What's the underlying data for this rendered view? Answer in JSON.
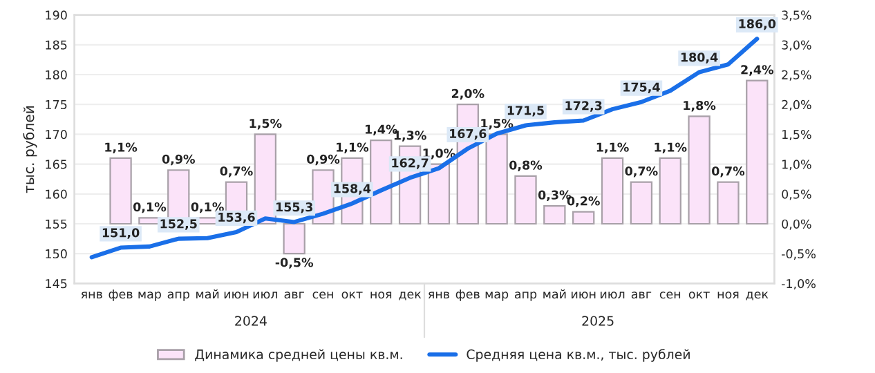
{
  "chart_data": {
    "type": "bar",
    "categories": [
      "янв",
      "фев",
      "мар",
      "апр",
      "май",
      "июн",
      "июл",
      "авг",
      "сен",
      "окт",
      "ноя",
      "дек",
      "янв",
      "фев",
      "мар",
      "апр",
      "май",
      "июн",
      "июл",
      "авг",
      "сен",
      "окт",
      "ноя",
      "дек"
    ],
    "series": [
      {
        "name": "Динамика средней цены кв.м.",
        "axis": "y2",
        "color": "#fbe3f9",
        "values": [
          null,
          1.1,
          0.1,
          0.9,
          0.1,
          0.7,
          1.5,
          -0.5,
          0.9,
          1.1,
          1.4,
          1.3,
          1.0,
          2.0,
          1.5,
          0.8,
          0.3,
          0.2,
          1.1,
          0.7,
          1.1,
          1.8,
          0.7,
          2.4
        ],
        "value_labels": [
          null,
          "1,1%",
          "0,1%",
          "0,9%",
          "0,1%",
          "0,7%",
          "1,5%",
          "-0,5%",
          "0,9%",
          "1,1%",
          "1,4%",
          "1,3%",
          "1,0%",
          "2,0%",
          "1,5%",
          "0,8%",
          "0,3%",
          "0,2%",
          "1,1%",
          "0,7%",
          "1,1%",
          "1,8%",
          "0,7%",
          "2,4%"
        ]
      },
      {
        "name": "Средняя цена кв.м., тыс. рублей",
        "type": "line",
        "color": "#1a6fe8",
        "values": [
          149.4,
          151.0,
          151.2,
          152.5,
          152.6,
          153.6,
          155.9,
          155.3,
          156.7,
          158.4,
          160.6,
          162.7,
          164.3,
          167.6,
          170.1,
          171.5,
          172.0,
          172.3,
          174.2,
          175.4,
          177.3,
          180.4,
          181.7,
          186.0
        ],
        "value_labels": [
          null,
          "151,0",
          null,
          "152,5",
          null,
          "153,6",
          null,
          "155,3",
          null,
          "158,4",
          null,
          "162,7",
          null,
          "167,6",
          null,
          "171,5",
          null,
          "172,3",
          null,
          "175,4",
          null,
          "180,4",
          null,
          "186,0"
        ]
      }
    ],
    "ylabel": "тыс. рублей",
    "ylim": [
      145,
      190
    ],
    "yticks": [
      145,
      150,
      155,
      160,
      165,
      170,
      175,
      180,
      185,
      190
    ],
    "y2lim": [
      -1.0,
      3.5
    ],
    "y2ticks": [
      {
        "value": -1.0,
        "label": "-1,0%"
      },
      {
        "value": -0.5,
        "label": "-0,5%"
      },
      {
        "value": 0.0,
        "label": "0,0%"
      },
      {
        "value": 0.5,
        "label": "0,5%"
      },
      {
        "value": 1.0,
        "label": "1,0%"
      },
      {
        "value": 1.5,
        "label": "1,5%"
      },
      {
        "value": 2.0,
        "label": "2,0%"
      },
      {
        "value": 2.5,
        "label": "2,5%"
      },
      {
        "value": 3.0,
        "label": "3,0%"
      },
      {
        "value": 3.5,
        "label": "3,5%"
      }
    ],
    "annotations": [
      "2024",
      "2025"
    ],
    "grid": "y",
    "legend": "bottom"
  }
}
